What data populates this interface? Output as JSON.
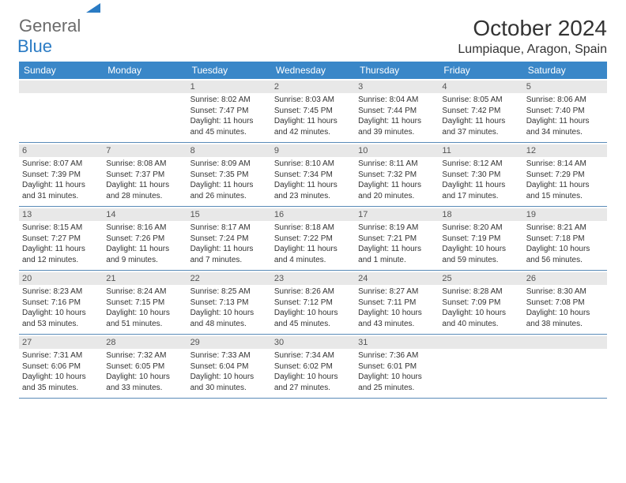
{
  "logo": {
    "text1": "General",
    "text2": "Blue"
  },
  "title": "October 2024",
  "location": "Lumpiaque, Aragon, Spain",
  "dayHeaders": [
    "Sunday",
    "Monday",
    "Tuesday",
    "Wednesday",
    "Thursday",
    "Friday",
    "Saturday"
  ],
  "colors": {
    "headerBg": "#3a87c8",
    "headerText": "#ffffff",
    "dayNumBg": "#e8e8e8",
    "rowBorder": "#5a8bb8",
    "logoGray": "#6b6b6b",
    "logoBlue": "#2a7bc4"
  },
  "calendar": {
    "type": "table",
    "firstWeekdayOffset": 2,
    "days": [
      {
        "num": "1",
        "sunrise": "8:02 AM",
        "sunset": "7:47 PM",
        "daylight": "11 hours and 45 minutes."
      },
      {
        "num": "2",
        "sunrise": "8:03 AM",
        "sunset": "7:45 PM",
        "daylight": "11 hours and 42 minutes."
      },
      {
        "num": "3",
        "sunrise": "8:04 AM",
        "sunset": "7:44 PM",
        "daylight": "11 hours and 39 minutes."
      },
      {
        "num": "4",
        "sunrise": "8:05 AM",
        "sunset": "7:42 PM",
        "daylight": "11 hours and 37 minutes."
      },
      {
        "num": "5",
        "sunrise": "8:06 AM",
        "sunset": "7:40 PM",
        "daylight": "11 hours and 34 minutes."
      },
      {
        "num": "6",
        "sunrise": "8:07 AM",
        "sunset": "7:39 PM",
        "daylight": "11 hours and 31 minutes."
      },
      {
        "num": "7",
        "sunrise": "8:08 AM",
        "sunset": "7:37 PM",
        "daylight": "11 hours and 28 minutes."
      },
      {
        "num": "8",
        "sunrise": "8:09 AM",
        "sunset": "7:35 PM",
        "daylight": "11 hours and 26 minutes."
      },
      {
        "num": "9",
        "sunrise": "8:10 AM",
        "sunset": "7:34 PM",
        "daylight": "11 hours and 23 minutes."
      },
      {
        "num": "10",
        "sunrise": "8:11 AM",
        "sunset": "7:32 PM",
        "daylight": "11 hours and 20 minutes."
      },
      {
        "num": "11",
        "sunrise": "8:12 AM",
        "sunset": "7:30 PM",
        "daylight": "11 hours and 17 minutes."
      },
      {
        "num": "12",
        "sunrise": "8:14 AM",
        "sunset": "7:29 PM",
        "daylight": "11 hours and 15 minutes."
      },
      {
        "num": "13",
        "sunrise": "8:15 AM",
        "sunset": "7:27 PM",
        "daylight": "11 hours and 12 minutes."
      },
      {
        "num": "14",
        "sunrise": "8:16 AM",
        "sunset": "7:26 PM",
        "daylight": "11 hours and 9 minutes."
      },
      {
        "num": "15",
        "sunrise": "8:17 AM",
        "sunset": "7:24 PM",
        "daylight": "11 hours and 7 minutes."
      },
      {
        "num": "16",
        "sunrise": "8:18 AM",
        "sunset": "7:22 PM",
        "daylight": "11 hours and 4 minutes."
      },
      {
        "num": "17",
        "sunrise": "8:19 AM",
        "sunset": "7:21 PM",
        "daylight": "11 hours and 1 minute."
      },
      {
        "num": "18",
        "sunrise": "8:20 AM",
        "sunset": "7:19 PM",
        "daylight": "10 hours and 59 minutes."
      },
      {
        "num": "19",
        "sunrise": "8:21 AM",
        "sunset": "7:18 PM",
        "daylight": "10 hours and 56 minutes."
      },
      {
        "num": "20",
        "sunrise": "8:23 AM",
        "sunset": "7:16 PM",
        "daylight": "10 hours and 53 minutes."
      },
      {
        "num": "21",
        "sunrise": "8:24 AM",
        "sunset": "7:15 PM",
        "daylight": "10 hours and 51 minutes."
      },
      {
        "num": "22",
        "sunrise": "8:25 AM",
        "sunset": "7:13 PM",
        "daylight": "10 hours and 48 minutes."
      },
      {
        "num": "23",
        "sunrise": "8:26 AM",
        "sunset": "7:12 PM",
        "daylight": "10 hours and 45 minutes."
      },
      {
        "num": "24",
        "sunrise": "8:27 AM",
        "sunset": "7:11 PM",
        "daylight": "10 hours and 43 minutes."
      },
      {
        "num": "25",
        "sunrise": "8:28 AM",
        "sunset": "7:09 PM",
        "daylight": "10 hours and 40 minutes."
      },
      {
        "num": "26",
        "sunrise": "8:30 AM",
        "sunset": "7:08 PM",
        "daylight": "10 hours and 38 minutes."
      },
      {
        "num": "27",
        "sunrise": "7:31 AM",
        "sunset": "6:06 PM",
        "daylight": "10 hours and 35 minutes."
      },
      {
        "num": "28",
        "sunrise": "7:32 AM",
        "sunset": "6:05 PM",
        "daylight": "10 hours and 33 minutes."
      },
      {
        "num": "29",
        "sunrise": "7:33 AM",
        "sunset": "6:04 PM",
        "daylight": "10 hours and 30 minutes."
      },
      {
        "num": "30",
        "sunrise": "7:34 AM",
        "sunset": "6:02 PM",
        "daylight": "10 hours and 27 minutes."
      },
      {
        "num": "31",
        "sunrise": "7:36 AM",
        "sunset": "6:01 PM",
        "daylight": "10 hours and 25 minutes."
      }
    ]
  },
  "labels": {
    "sunrise": "Sunrise:",
    "sunset": "Sunset:",
    "daylight": "Daylight:"
  }
}
